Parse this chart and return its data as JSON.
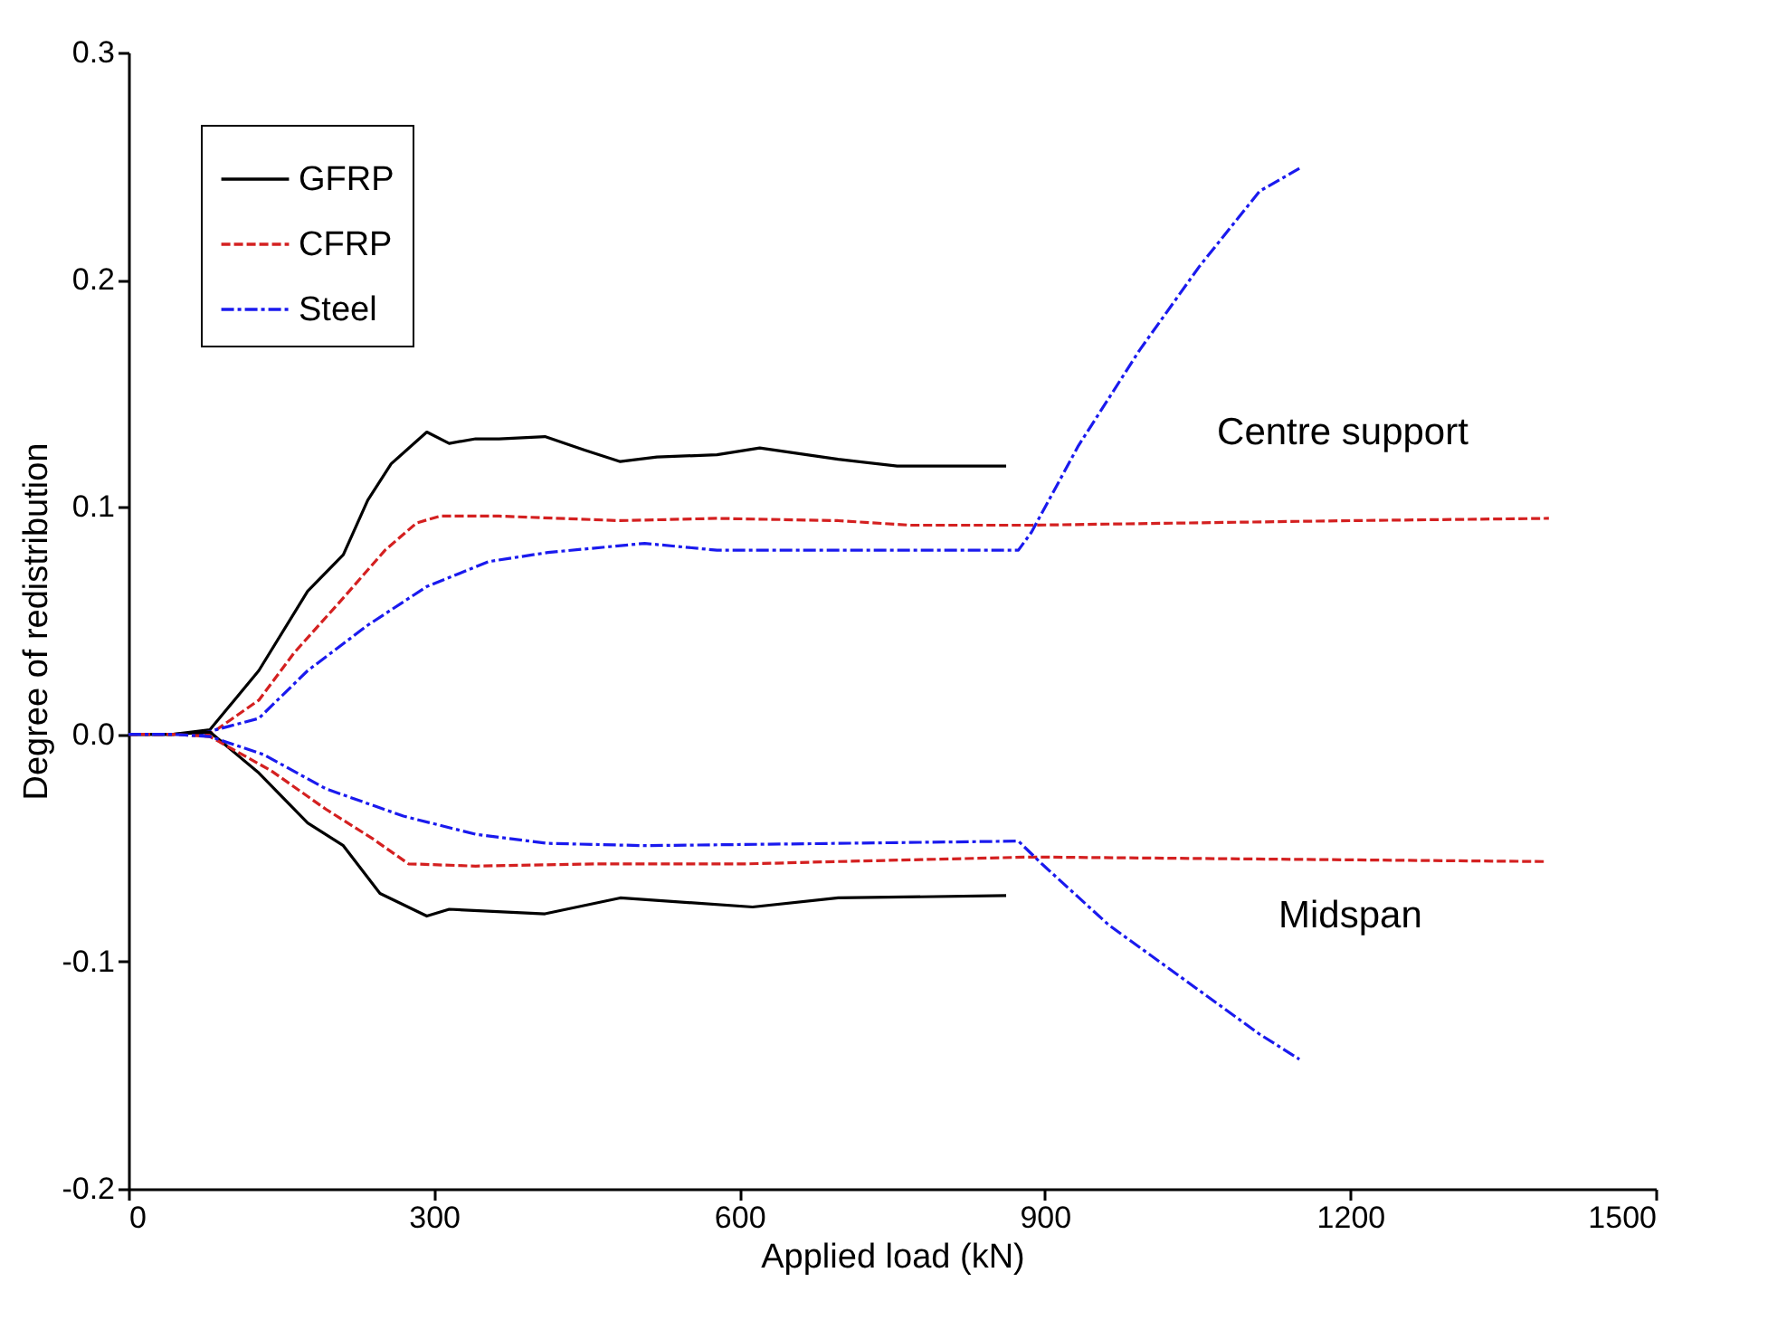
{
  "chart_data": {
    "type": "line",
    "xlabel": "Applied load (kN)",
    "ylabel": "Degree of redistribution",
    "xlim": [
      0,
      1500
    ],
    "xticks": [
      0,
      300,
      600,
      900,
      1200,
      1500
    ],
    "ylim": [
      -0.2,
      0.3
    ],
    "yticks": [
      -0.2,
      -0.1,
      {
        "value": 0,
        "label": "0.0"
      },
      0.1,
      0.2,
      0.3
    ],
    "grid": false,
    "legend": "top left",
    "marker": "none",
    "series": [
      {
        "name": "GFRP",
        "color": "#000000",
        "line_style": "solid",
        "x": [
          0,
          44,
          80,
          128,
          176,
          211,
          235,
          258,
          293,
          315,
          341,
          364,
          409,
          448,
          483,
          519,
          578,
          620,
          697,
          755,
          862
        ],
        "values": [
          0,
          0,
          0.002,
          0.028,
          0.063,
          0.079,
          0.103,
          0.119,
          0.133,
          0.128,
          0.13,
          0.13,
          0.131,
          0.125,
          0.12,
          0.122,
          0.123,
          0.126,
          0.121,
          0.118,
          0.118
        ]
      },
      {
        "name": "CFRP",
        "color": "#d42020",
        "line_style": "dashed",
        "x": [
          0,
          44,
          80,
          128,
          163,
          211,
          252,
          283,
          306,
          364,
          483,
          578,
          697,
          768,
          887,
          1200,
          1395
        ],
        "values": [
          0,
          0,
          0,
          0.015,
          0.036,
          0.06,
          0.081,
          0.093,
          0.096,
          0.096,
          0.094,
          0.095,
          0.094,
          0.092,
          0.092,
          0.094,
          0.095
        ]
      },
      {
        "name": "Steel",
        "color": "#1a1aee",
        "line_style": "dashdot",
        "x": [
          0,
          44,
          69,
          128,
          176,
          235,
          293,
          354,
          412,
          507,
          578,
          697,
          874,
          887,
          933,
          993,
          1052,
          1111,
          1150
        ],
        "values": [
          0,
          0,
          0,
          0.007,
          0.028,
          0.048,
          0.065,
          0.076,
          0.08,
          0.084,
          0.081,
          0.081,
          0.081,
          0.089,
          0.127,
          0.169,
          0.206,
          0.239,
          0.249
        ]
      },
      {
        "color": "#000000",
        "line_style": "solid",
        "x": [
          0,
          44,
          80,
          128,
          176,
          211,
          247,
          293,
          315,
          409,
          483,
          613,
          697,
          862
        ],
        "values": [
          0,
          0,
          0.001,
          -0.017,
          -0.039,
          -0.049,
          -0.07,
          -0.08,
          -0.077,
          -0.079,
          -0.072,
          -0.076,
          -0.072,
          -0.071
        ]
      },
      {
        "color": "#d42020",
        "line_style": "dashed",
        "x": [
          0,
          44,
          80,
          140,
          194,
          240,
          275,
          341,
          460,
          608,
          697,
          887,
          1390
        ],
        "values": [
          0,
          0,
          -0.001,
          -0.016,
          -0.033,
          -0.046,
          -0.057,
          -0.058,
          -0.057,
          -0.057,
          -0.056,
          -0.054,
          -0.056
        ]
      },
      {
        "color": "#1a1aee",
        "line_style": "dashdot",
        "x": [
          0,
          44,
          80,
          133,
          194,
          270,
          341,
          412,
          507,
          697,
          874,
          897,
          963,
          1034,
          1111,
          1150
        ],
        "values": [
          0,
          0,
          -0.001,
          -0.009,
          -0.024,
          -0.036,
          -0.044,
          -0.048,
          -0.049,
          -0.048,
          -0.047,
          -0.057,
          -0.084,
          -0.107,
          -0.132,
          -0.143
        ]
      }
    ],
    "annotations": [
      "Centre support",
      "Midspan"
    ]
  }
}
